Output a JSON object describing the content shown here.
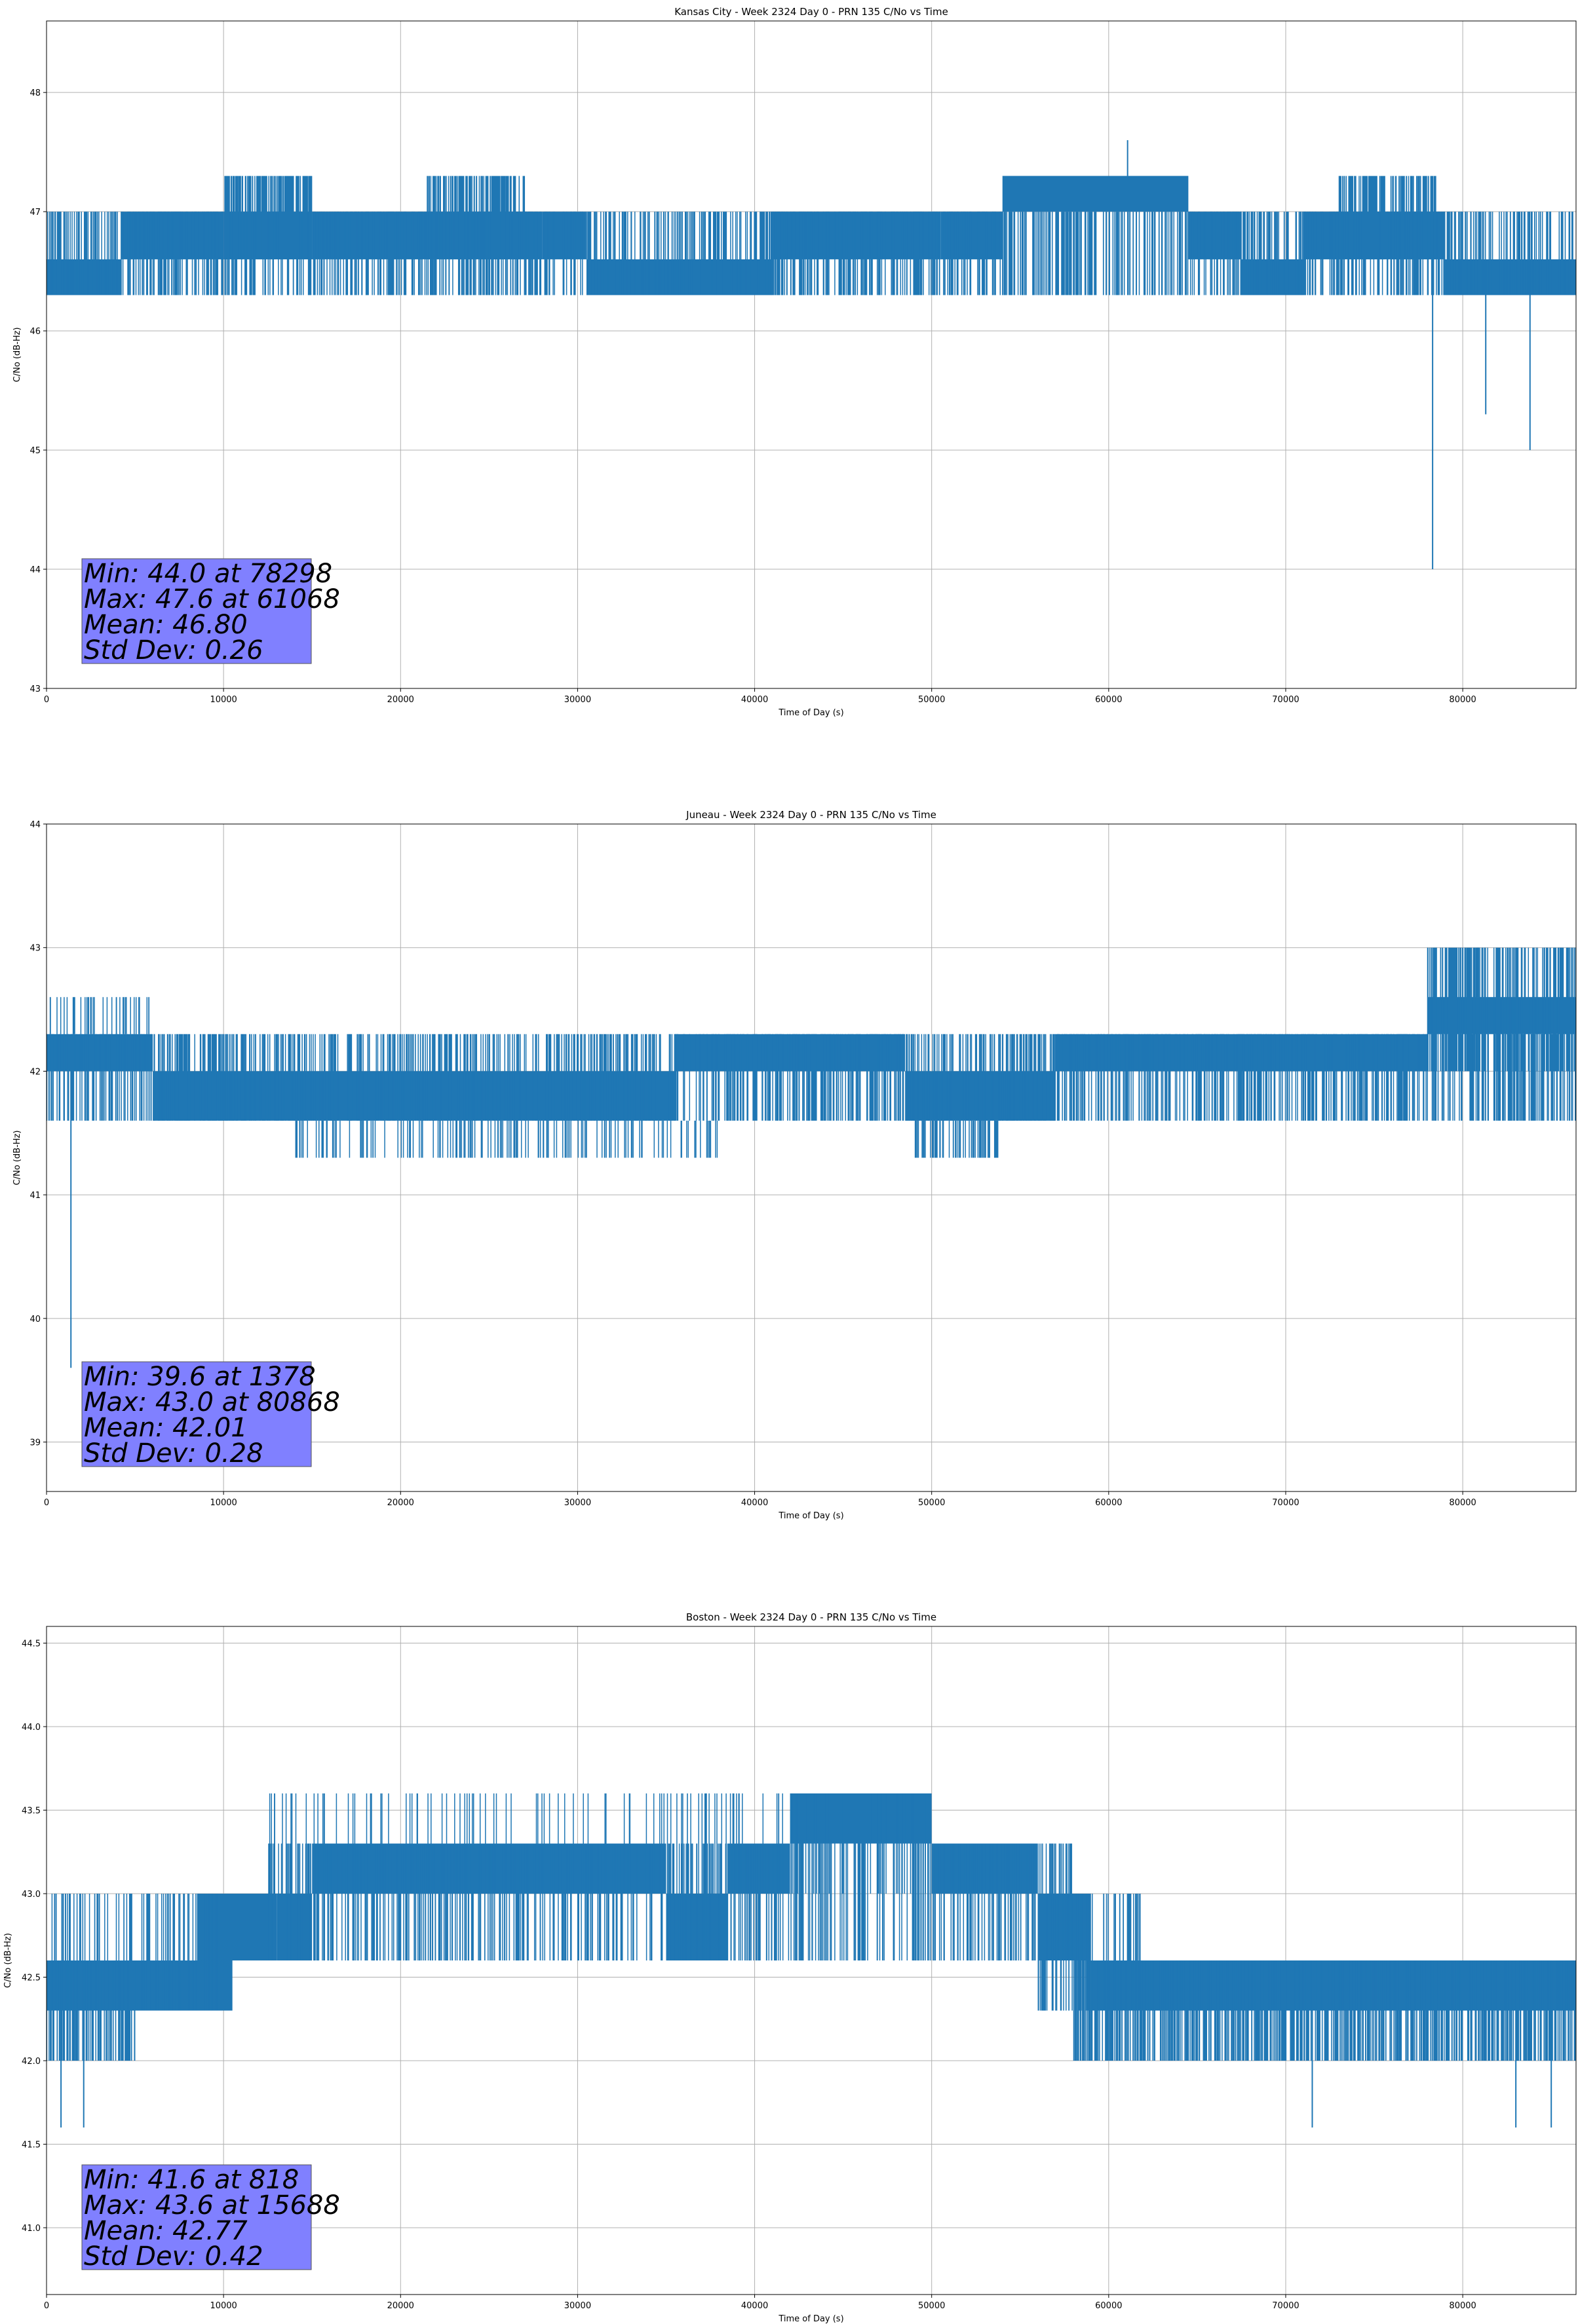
{
  "chart_data": [
    {
      "type": "line",
      "title": "Kansas City - Week 2324 Day 0 - PRN 135 C/No vs Time",
      "xlabel": "Time of Day (s)",
      "ylabel": "C/No (dB-Hz)",
      "xlim": [
        0,
        86400
      ],
      "ylim": [
        43,
        48.6
      ],
      "xticks": [
        0,
        10000,
        20000,
        30000,
        40000,
        50000,
        60000,
        70000,
        80000
      ],
      "yticks": [
        43,
        44,
        45,
        46,
        47,
        48
      ],
      "ytick_labels": [
        "43",
        "44",
        "45",
        "46",
        "47",
        "48"
      ],
      "grid": true,
      "line_color": "#1f77b4",
      "stats_box_color": "#8080ff",
      "stats": [
        "Min: 44.0 at 78298",
        "Max: 47.6 at 61068",
        "Mean: 46.80",
        "Std Dev: 0.26"
      ],
      "bands": [
        {
          "x": [
            0,
            4200
          ],
          "low": 46.3,
          "high": 46.6
        },
        {
          "x": [
            4200,
            10000
          ],
          "low": 46.6,
          "high": 47.0
        },
        {
          "x": [
            10000,
            15000
          ],
          "low": 46.6,
          "high": 47.0
        },
        {
          "x": [
            15000,
            21000
          ],
          "low": 46.6,
          "high": 47.0
        },
        {
          "x": [
            21000,
            28000
          ],
          "low": 46.6,
          "high": 47.0
        },
        {
          "x": [
            28000,
            30500
          ],
          "low": 46.6,
          "high": 47.0
        },
        {
          "x": [
            30500,
            41000
          ],
          "low": 46.3,
          "high": 46.6
        },
        {
          "x": [
            41000,
            50500
          ],
          "low": 46.6,
          "high": 47.0
        },
        {
          "x": [
            50500,
            54000
          ],
          "low": 46.6,
          "high": 47.0
        },
        {
          "x": [
            54000,
            64500
          ],
          "low": 47.0,
          "high": 47.3
        },
        {
          "x": [
            64500,
            67500
          ],
          "low": 46.6,
          "high": 47.0
        },
        {
          "x": [
            67500,
            71000
          ],
          "low": 46.3,
          "high": 46.6
        },
        {
          "x": [
            71000,
            79000
          ],
          "low": 46.6,
          "high": 47.0
        },
        {
          "x": [
            79000,
            86400
          ],
          "low": 46.3,
          "high": 46.6
        }
      ],
      "noise": [
        {
          "x": [
            0,
            86400
          ],
          "low": 46.3,
          "high": 47.0,
          "count": 1200
        },
        {
          "x": [
            10000,
            15000
          ],
          "low": 46.6,
          "high": 47.3,
          "count": 140
        },
        {
          "x": [
            21500,
            27000
          ],
          "low": 46.6,
          "high": 47.3,
          "count": 140
        },
        {
          "x": [
            73000,
            78500
          ],
          "low": 46.6,
          "high": 47.3,
          "count": 140
        }
      ],
      "spikes": [
        {
          "x": 78298,
          "from": 46.6,
          "to": 44.0
        },
        {
          "x": 81300,
          "from": 46.6,
          "to": 45.3
        },
        {
          "x": 83800,
          "from": 46.6,
          "to": 45.0
        },
        {
          "x": 61068,
          "from": 47.3,
          "to": 47.6
        }
      ]
    },
    {
      "type": "line",
      "title": "Juneau - Week 2324 Day 0 - PRN 135 C/No vs Time",
      "xlabel": "Time of Day (s)",
      "ylabel": "C/No (dB-Hz)",
      "xlim": [
        0,
        86400
      ],
      "ylim": [
        38.6,
        44
      ],
      "xticks": [
        0,
        10000,
        20000,
        30000,
        40000,
        50000,
        60000,
        70000,
        80000
      ],
      "yticks": [
        39,
        40,
        41,
        42,
        43,
        44
      ],
      "ytick_labels": [
        "39",
        "40",
        "41",
        "42",
        "43",
        "44"
      ],
      "grid": true,
      "line_color": "#1f77b4",
      "stats_box_color": "#8080ff",
      "stats": [
        "Min: 39.6 at 1378",
        "Max: 43.0 at 80868",
        "Mean: 42.01",
        "Std Dev: 0.28"
      ],
      "bands": [
        {
          "x": [
            0,
            6000
          ],
          "low": 42.0,
          "high": 42.3
        },
        {
          "x": [
            6000,
            35500
          ],
          "low": 41.6,
          "high": 42.0
        },
        {
          "x": [
            35500,
            48500
          ],
          "low": 42.0,
          "high": 42.3
        },
        {
          "x": [
            48500,
            57000
          ],
          "low": 41.6,
          "high": 42.0
        },
        {
          "x": [
            57000,
            78000
          ],
          "low": 42.0,
          "high": 42.3
        },
        {
          "x": [
            78000,
            86400
          ],
          "low": 42.3,
          "high": 42.6
        }
      ],
      "noise": [
        {
          "x": [
            0,
            86400
          ],
          "low": 41.6,
          "high": 42.3,
          "count": 1200
        },
        {
          "x": [
            14000,
            38000
          ],
          "low": 41.3,
          "high": 41.6,
          "count": 160
        },
        {
          "x": [
            49000,
            54000
          ],
          "low": 41.3,
          "high": 41.6,
          "count": 60
        },
        {
          "x": [
            78000,
            86400
          ],
          "low": 42.0,
          "high": 43.0,
          "count": 160
        },
        {
          "x": [
            0,
            6000
          ],
          "low": 42.3,
          "high": 42.6,
          "count": 40
        }
      ],
      "spikes": [
        {
          "x": 1378,
          "from": 42.0,
          "to": 39.6
        },
        {
          "x": 80868,
          "from": 42.6,
          "to": 43.0
        }
      ]
    },
    {
      "type": "line",
      "title": "Boston - Week 2324 Day 0 - PRN 135 C/No vs Time",
      "xlabel": "Time of Day (s)",
      "ylabel": "C/No (dB-Hz)",
      "xlim": [
        0,
        86400
      ],
      "ylim": [
        40.6,
        44.6
      ],
      "xticks": [
        0,
        10000,
        20000,
        30000,
        40000,
        50000,
        60000,
        70000,
        80000
      ],
      "yticks": [
        41.0,
        41.5,
        42.0,
        42.5,
        43.0,
        43.5,
        44.0,
        44.5
      ],
      "ytick_labels": [
        "41.0",
        "41.5",
        "42.0",
        "42.5",
        "43.0",
        "43.5",
        "44.0",
        "44.5"
      ],
      "grid": true,
      "line_color": "#1f77b4",
      "stats_box_color": "#8080ff",
      "stats": [
        "Min: 41.6 at 818",
        "Max: 43.6 at 15688",
        "Mean: 42.77",
        "Std Dev: 0.42"
      ],
      "bands": [
        {
          "x": [
            0,
            10500
          ],
          "low": 42.3,
          "high": 42.6
        },
        {
          "x": [
            8500,
            13000
          ],
          "low": 42.6,
          "high": 43.0
        },
        {
          "x": [
            13000,
            15000
          ],
          "low": 42.6,
          "high": 43.0
        },
        {
          "x": [
            15000,
            35000
          ],
          "low": 43.0,
          "high": 43.3
        },
        {
          "x": [
            35000,
            38500
          ],
          "low": 42.6,
          "high": 43.0
        },
        {
          "x": [
            38500,
            42000
          ],
          "low": 43.0,
          "high": 43.3
        },
        {
          "x": [
            42000,
            50000
          ],
          "low": 43.3,
          "high": 43.6
        },
        {
          "x": [
            50000,
            56000
          ],
          "low": 43.0,
          "high": 43.3
        },
        {
          "x": [
            56000,
            59000
          ],
          "low": 42.6,
          "high": 43.0
        },
        {
          "x": [
            59000,
            86400
          ],
          "low": 42.3,
          "high": 42.6
        }
      ],
      "noise": [
        {
          "x": [
            0,
            5000
          ],
          "low": 42.0,
          "high": 42.6,
          "count": 100
        },
        {
          "x": [
            0,
            10000
          ],
          "low": 42.3,
          "high": 43.0,
          "count": 80
        },
        {
          "x": [
            12500,
            58000
          ],
          "low": 42.6,
          "high": 43.3,
          "count": 500
        },
        {
          "x": [
            12500,
            50000
          ],
          "low": 43.0,
          "high": 43.6,
          "count": 120
        },
        {
          "x": [
            58000,
            86400
          ],
          "low": 42.0,
          "high": 42.6,
          "count": 600
        },
        {
          "x": [
            56000,
            62000
          ],
          "low": 42.3,
          "high": 43.0,
          "count": 60
        }
      ],
      "spikes": [
        {
          "x": 818,
          "from": 42.3,
          "to": 41.6
        },
        {
          "x": 2100,
          "from": 42.3,
          "to": 41.6
        },
        {
          "x": 71500,
          "from": 42.3,
          "to": 41.6
        },
        {
          "x": 83000,
          "from": 42.3,
          "to": 41.6
        },
        {
          "x": 85000,
          "from": 42.3,
          "to": 41.6
        },
        {
          "x": 15688,
          "from": 43.3,
          "to": 43.6
        }
      ]
    }
  ]
}
